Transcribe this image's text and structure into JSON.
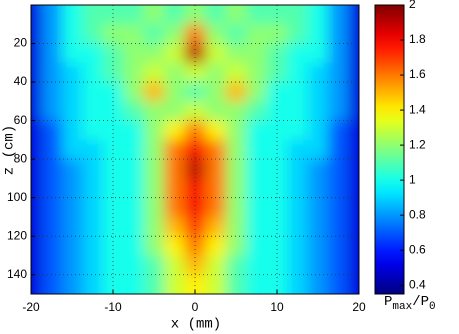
{
  "chart_data": {
    "type": "heatmap",
    "colormap": "jet",
    "grid": true,
    "x_label": "x (mm)",
    "y_label": "z (cm)",
    "colorbar_label": [
      "P",
      "max",
      "/P",
      "0"
    ],
    "xlim": [
      -20,
      20
    ],
    "xticks": [
      -20,
      -10,
      0,
      10,
      20
    ],
    "ylim": [
      0,
      150
    ],
    "yticks": [
      20,
      40,
      60,
      80,
      100,
      120,
      140
    ],
    "clim": [
      0.35,
      2
    ],
    "cticks": [
      0.4,
      0.6,
      0.8,
      1,
      1.2,
      1.4,
      1.6,
      1.8,
      2
    ],
    "x": [
      -20,
      -17.5,
      -15,
      -12.5,
      -10,
      -7.5,
      -5,
      -2.5,
      0,
      2.5,
      5,
      7.5,
      10,
      12.5,
      15,
      17.5,
      20
    ],
    "y": [
      5,
      15,
      25,
      35,
      45,
      55,
      65,
      75,
      85,
      95,
      105,
      115,
      125,
      135,
      145
    ],
    "z": [
      [
        0.5,
        0.8,
        1.0,
        1.1,
        1.1,
        1.1,
        1.2,
        1.1,
        1.2,
        1.1,
        1.2,
        1.1,
        1.1,
        1.1,
        1.0,
        0.8,
        0.5
      ],
      [
        0.5,
        0.8,
        1.0,
        1.1,
        1.2,
        1.2,
        1.1,
        1.2,
        1.6,
        1.2,
        1.1,
        1.2,
        1.2,
        1.1,
        1.0,
        0.8,
        0.5
      ],
      [
        0.5,
        0.8,
        1.0,
        1.0,
        1.1,
        1.2,
        1.2,
        1.3,
        1.9,
        1.3,
        1.2,
        1.2,
        1.1,
        1.0,
        1.0,
        0.8,
        0.5
      ],
      [
        0.5,
        0.8,
        0.9,
        1.0,
        1.1,
        1.2,
        1.3,
        1.2,
        1.3,
        1.2,
        1.3,
        1.2,
        1.1,
        1.0,
        0.9,
        0.8,
        0.5
      ],
      [
        0.5,
        0.8,
        0.9,
        1.0,
        1.0,
        1.2,
        1.5,
        1.2,
        1.1,
        1.2,
        1.5,
        1.2,
        1.0,
        1.0,
        0.9,
        0.8,
        0.5
      ],
      [
        0.5,
        0.8,
        0.9,
        1.0,
        1.0,
        1.1,
        1.2,
        1.2,
        1.3,
        1.2,
        1.2,
        1.1,
        1.0,
        1.0,
        0.9,
        0.8,
        0.5
      ],
      [
        0.5,
        0.7,
        0.9,
        1.0,
        1.0,
        1.0,
        1.2,
        1.4,
        1.6,
        1.4,
        1.2,
        1.0,
        1.0,
        1.0,
        0.9,
        0.7,
        0.5
      ],
      [
        0.5,
        0.7,
        0.9,
        0.9,
        1.0,
        1.0,
        1.2,
        1.6,
        1.8,
        1.6,
        1.2,
        1.0,
        1.0,
        0.9,
        0.9,
        0.7,
        0.5
      ],
      [
        0.5,
        0.7,
        0.8,
        0.9,
        1.0,
        1.0,
        1.2,
        1.6,
        1.9,
        1.6,
        1.2,
        1.0,
        1.0,
        0.9,
        0.8,
        0.7,
        0.5
      ],
      [
        0.5,
        0.7,
        0.8,
        0.9,
        1.0,
        1.0,
        1.2,
        1.6,
        1.8,
        1.6,
        1.2,
        1.0,
        1.0,
        0.9,
        0.8,
        0.7,
        0.5
      ],
      [
        0.5,
        0.7,
        0.8,
        0.9,
        1.0,
        1.0,
        1.2,
        1.6,
        1.8,
        1.6,
        1.2,
        1.0,
        1.0,
        0.9,
        0.8,
        0.7,
        0.5
      ],
      [
        0.5,
        0.7,
        0.8,
        0.9,
        1.0,
        1.0,
        1.2,
        1.5,
        1.7,
        1.5,
        1.2,
        1.0,
        1.0,
        0.9,
        0.8,
        0.7,
        0.5
      ],
      [
        0.5,
        0.7,
        0.8,
        0.9,
        1.0,
        1.0,
        1.2,
        1.4,
        1.6,
        1.4,
        1.2,
        1.0,
        1.0,
        0.9,
        0.8,
        0.7,
        0.5
      ],
      [
        0.5,
        0.7,
        0.8,
        0.9,
        1.0,
        1.0,
        1.1,
        1.3,
        1.5,
        1.3,
        1.1,
        1.0,
        1.0,
        0.9,
        0.8,
        0.7,
        0.5
      ],
      [
        0.5,
        0.7,
        0.8,
        0.9,
        1.0,
        1.0,
        1.1,
        1.3,
        1.4,
        1.3,
        1.1,
        1.0,
        1.0,
        0.9,
        0.8,
        0.7,
        0.5
      ]
    ]
  }
}
